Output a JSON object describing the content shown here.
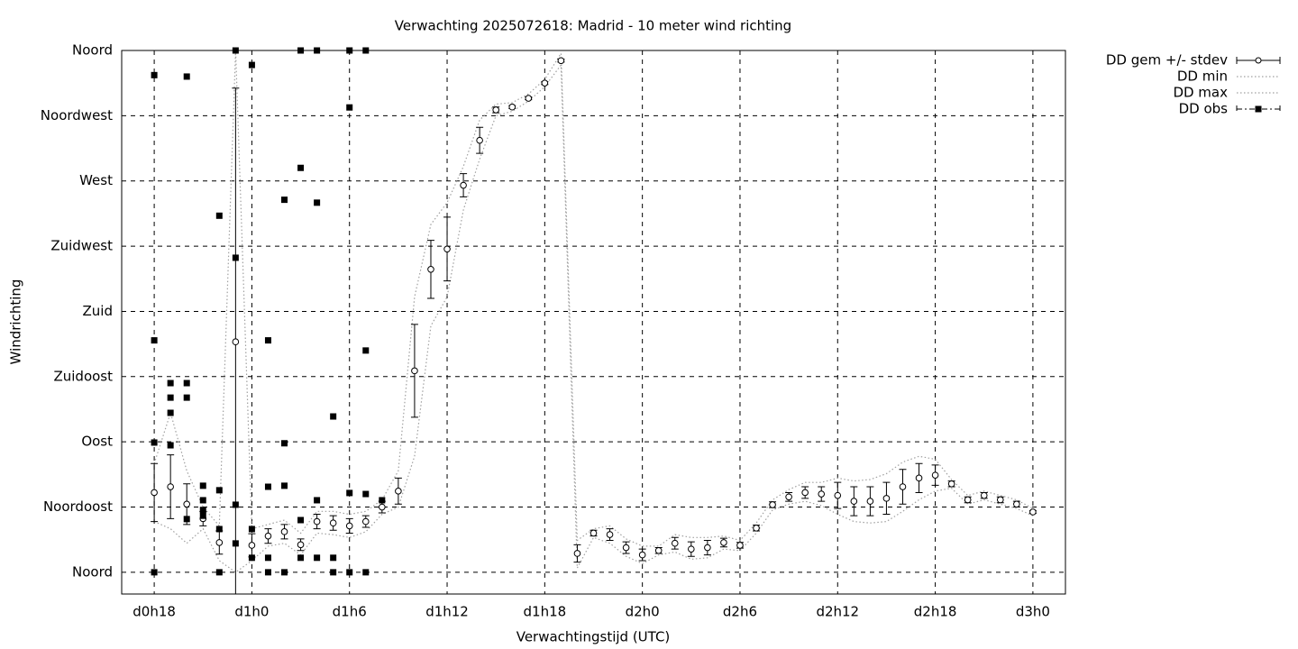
{
  "chart_data": {
    "type": "errorbar",
    "title": "Verwachting 2025072618: Madrid - 10 meter wind richting",
    "x_label": "Verwachtingstijd (UTC)",
    "y_label": "Windrichting",
    "xlim": [
      16,
      74
    ],
    "xticks": [
      {
        "value": 18,
        "label": "d0h18"
      },
      {
        "value": 24,
        "label": "d1h0"
      },
      {
        "value": 30,
        "label": "d1h6"
      },
      {
        "value": 36,
        "label": "d1h12"
      },
      {
        "value": 42,
        "label": "d1h18"
      },
      {
        "value": 48,
        "label": "d2h0"
      },
      {
        "value": 54,
        "label": "d2h6"
      },
      {
        "value": 60,
        "label": "d2h12"
      },
      {
        "value": 66,
        "label": "d2h18"
      },
      {
        "value": 72,
        "label": "d3h0"
      }
    ],
    "ylim": [
      -15,
      360
    ],
    "yticks": [
      {
        "value": 0,
        "label": "Noord"
      },
      {
        "value": 45,
        "label": "Noordoost"
      },
      {
        "value": 90,
        "label": "Oost"
      },
      {
        "value": 135,
        "label": "Zuidoost"
      },
      {
        "value": 180,
        "label": "Zuid"
      },
      {
        "value": 225,
        "label": "Zuidwest"
      },
      {
        "value": 270,
        "label": "West"
      },
      {
        "value": 315,
        "label": "Noordwest"
      },
      {
        "value": 360,
        "label": "Noord"
      }
    ],
    "grid": true,
    "legend": "outside-top-right",
    "x": [
      18,
      19,
      20,
      21,
      22,
      23,
      24,
      25,
      26,
      27,
      28,
      29,
      30,
      31,
      32,
      33,
      34,
      35,
      36,
      37,
      38,
      39,
      40,
      41,
      42,
      43,
      44,
      45,
      46,
      47,
      48,
      49,
      50,
      51,
      52,
      53,
      54,
      55,
      56,
      57,
      58,
      59,
      60,
      61,
      62,
      63,
      64,
      65,
      66,
      67,
      68,
      69,
      70,
      71,
      72
    ],
    "series": [
      {
        "name": "DD gem +/- stdev",
        "color": "#000000",
        "values": [
          55,
          59,
          47,
          37,
          20.5,
          159,
          18.6,
          25,
          28,
          19,
          35,
          34,
          32,
          35,
          45,
          56,
          139,
          209,
          223,
          267,
          298,
          319,
          321,
          327,
          337.5,
          353,
          13,
          27,
          26,
          17,
          12,
          15,
          20,
          16,
          17,
          20.5,
          18.6,
          30.5,
          46.6,
          52,
          55,
          54,
          53,
          49,
          49,
          51,
          59,
          65,
          67,
          61,
          50,
          53,
          50,
          47,
          41.6
        ],
        "errors": [
          20,
          22,
          14,
          5,
          8,
          175,
          8,
          5,
          5,
          4,
          5,
          5,
          5,
          4,
          4,
          9,
          32,
          20,
          22,
          8,
          9,
          2,
          1,
          1,
          1,
          1,
          6,
          2,
          4,
          4,
          4,
          2,
          4,
          5,
          5,
          3,
          2,
          2,
          2,
          3,
          4,
          5,
          9,
          10,
          10,
          11,
          12,
          10,
          7,
          2,
          2,
          2,
          2,
          2,
          1
        ]
      },
      {
        "name": "DD min",
        "color": "#a0a0a0",
        "values": [
          35,
          30,
          20,
          30,
          8,
          0,
          8,
          18,
          20,
          12,
          27,
          26,
          24,
          28,
          40,
          45,
          80,
          170,
          190,
          250,
          285,
          315,
          318,
          325,
          335,
          350,
          3,
          24,
          20,
          11,
          6,
          12,
          14,
          9,
          10,
          16,
          15,
          27,
          43,
          47,
          49,
          46,
          40,
          35,
          34,
          35,
          42,
          50,
          56,
          58,
          47,
          50,
          47,
          44,
          39
        ]
      },
      {
        "name": "DD max",
        "color": "#a0a0a0",
        "values": [
          75,
          110,
          70,
          45,
          32,
          360,
          30,
          33,
          36,
          27,
          42,
          42,
          40,
          42,
          50,
          70,
          190,
          240,
          255,
          280,
          312,
          323,
          324,
          330,
          340,
          358,
          22,
          30,
          32,
          23,
          18,
          18,
          26,
          24,
          24,
          25,
          22,
          34,
          50,
          57,
          62,
          62,
          65,
          63,
          64,
          68,
          76,
          80,
          78,
          64,
          53,
          56,
          53,
          50,
          44
        ]
      },
      {
        "name": "DD obs",
        "color": "#000000",
        "x": [
          18,
          18,
          18,
          18,
          19,
          19,
          19,
          19,
          20,
          20,
          20,
          20,
          21,
          21,
          21,
          21,
          22,
          22,
          22,
          22,
          23,
          23,
          23,
          23,
          24,
          24,
          24,
          25,
          25,
          25,
          25,
          26,
          26,
          26,
          26,
          27,
          27,
          27,
          27,
          28,
          28,
          28,
          28,
          29,
          29,
          29,
          30,
          30,
          30,
          30,
          31,
          31,
          31,
          31,
          32
        ],
        "values": [
          343,
          160,
          89.5,
          0,
          130.5,
          120.5,
          110,
          87.6,
          342,
          130.5,
          120.5,
          36.7,
          59.7,
          49.7,
          43,
          39,
          246,
          56.6,
          29.8,
          0,
          360,
          217,
          46.6,
          19.9,
          350,
          29.8,
          10,
          160,
          59,
          10,
          0,
          257,
          89,
          59.7,
          0,
          360,
          279,
          36,
          10,
          360,
          255,
          49.7,
          10,
          107.5,
          10,
          0,
          360,
          320.7,
          54.7,
          0,
          360,
          153,
          54,
          0,
          49.7
        ]
      }
    ]
  }
}
